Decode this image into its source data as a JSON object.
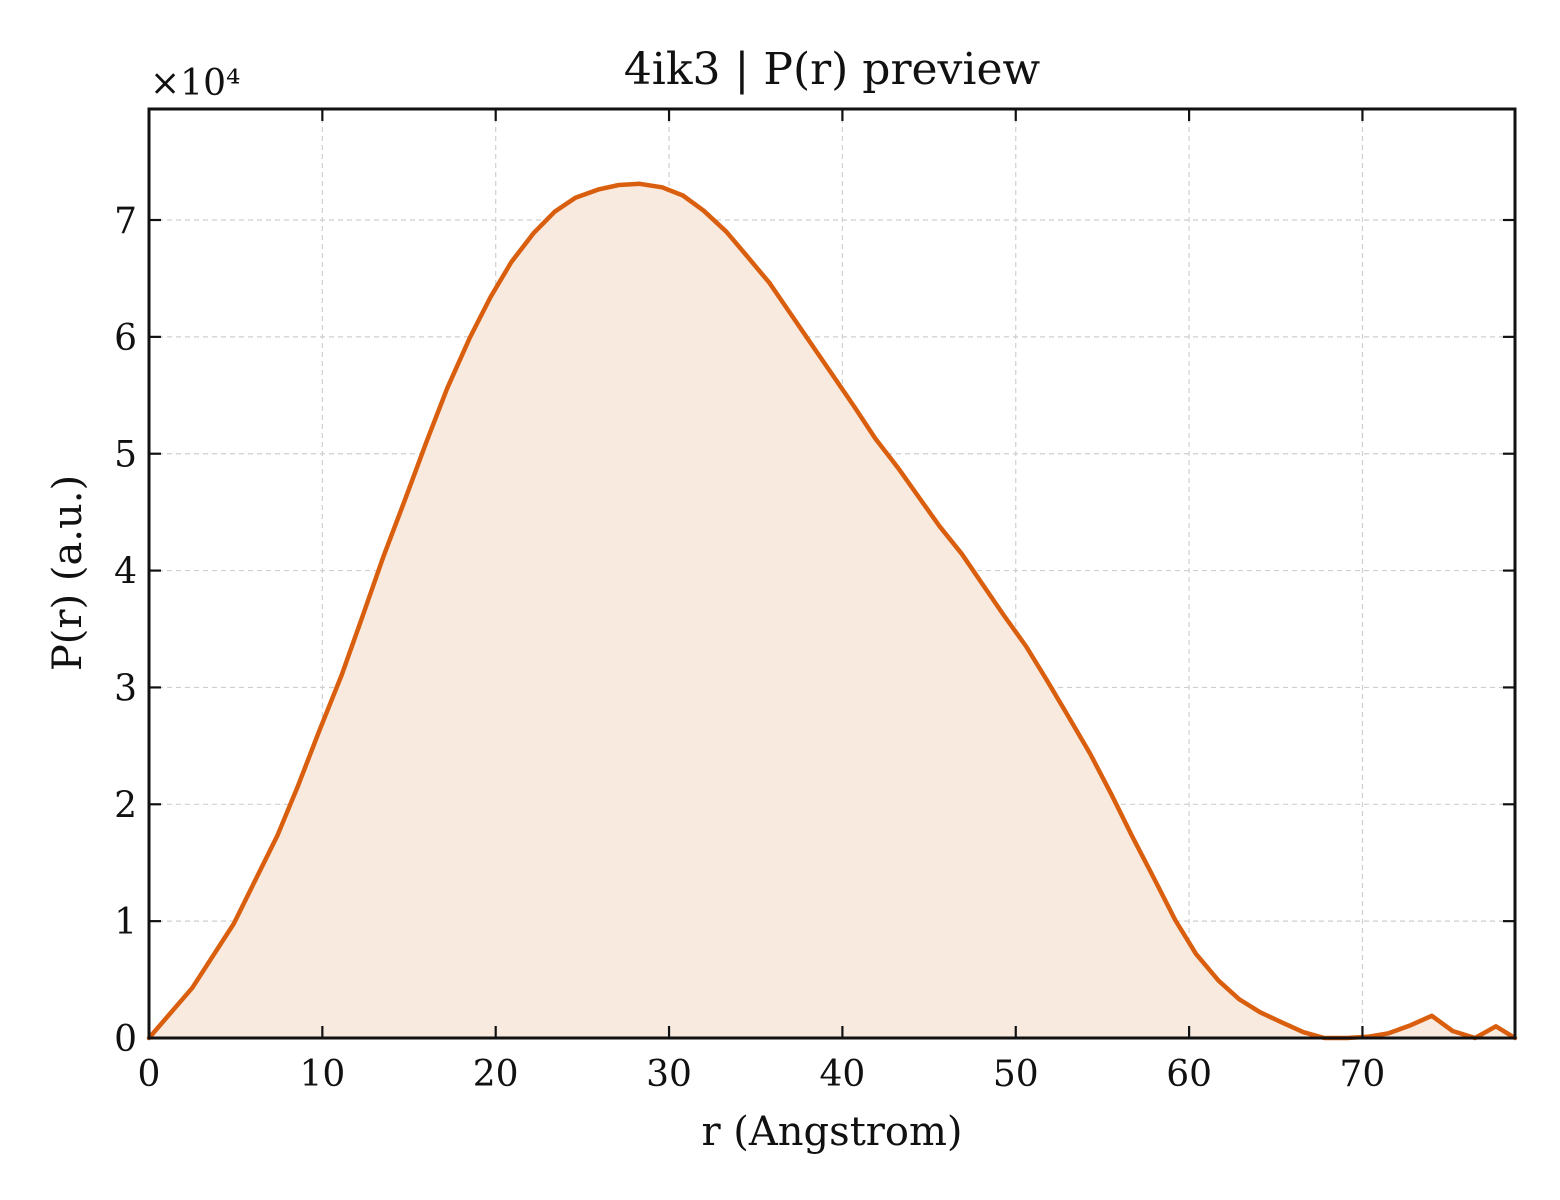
{
  "chart_data": {
    "type": "area",
    "title": "4ik3 | P(r) preview",
    "xlabel": "r (Angstrom)",
    "ylabel": "P(r) (a.u.)",
    "y_multiplier_label": "×10⁴",
    "xlim": [
      0,
      78.8
    ],
    "ylim": [
      0,
      79500
    ],
    "xticks": [
      0,
      10,
      20,
      30,
      40,
      50,
      60,
      70
    ],
    "yticks": [
      0,
      10000,
      20000,
      30000,
      40000,
      50000,
      60000,
      70000
    ],
    "xtick_labels": [
      "0",
      "10",
      "20",
      "30",
      "40",
      "50",
      "60",
      "70"
    ],
    "ytick_labels": [
      "0",
      "1",
      "2",
      "3",
      "4",
      "5",
      "6",
      "7"
    ],
    "grid": true,
    "colors": {
      "line": "#d95f0e",
      "fill": "#f9eae0"
    },
    "series": [
      {
        "x": [
          0,
          2.5,
          4.9,
          6.1,
          7.4,
          8.6,
          9.8,
          11.1,
          12.3,
          13.5,
          14.8,
          16.0,
          17.2,
          18.5,
          19.7,
          20.9,
          22.2,
          23.4,
          24.6,
          25.9,
          27.1,
          28.3,
          29.6,
          30.8,
          32.0,
          33.3,
          34.5,
          35.8,
          37.0,
          38.2,
          39.5,
          40.7,
          41.9,
          43.2,
          44.4,
          45.6,
          46.9,
          48.1,
          49.3,
          50.6,
          51.8,
          53.0,
          54.3,
          55.5,
          56.7,
          58.0,
          59.2,
          60.4,
          61.7,
          62.9,
          64.1,
          65.4,
          66.6,
          67.8,
          69.1,
          70.3,
          71.5,
          72.8,
          74.0,
          75.2,
          76.5,
          77.7,
          78.8
        ],
        "y": [
          0,
          4300,
          9800,
          13400,
          17300,
          21600,
          26200,
          31000,
          36000,
          41100,
          46200,
          51000,
          55600,
          59900,
          63400,
          66400,
          68900,
          70700,
          71900,
          72600,
          73000,
          73100,
          72800,
          72100,
          70800,
          69000,
          66900,
          64600,
          62000,
          59400,
          56600,
          54000,
          51300,
          48800,
          46300,
          43800,
          41400,
          38800,
          36200,
          33500,
          30600,
          27600,
          24300,
          20900,
          17300,
          13600,
          10100,
          7200,
          4900,
          3300,
          2200,
          1300,
          500,
          0,
          0,
          100,
          400,
          1100,
          1900,
          600,
          0,
          1000,
          0
        ]
      }
    ]
  }
}
